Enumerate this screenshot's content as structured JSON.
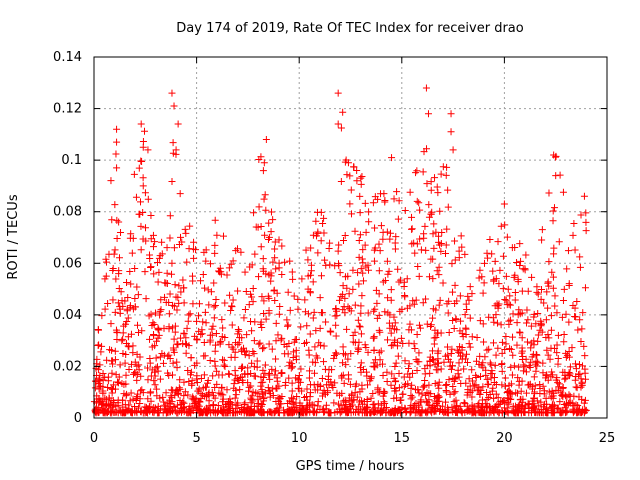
{
  "chart_data": {
    "type": "scatter",
    "title": "Day 174 of 2019, Rate Of TEC Index for receiver drao",
    "xlabel": "GPS time / hours",
    "ylabel": "ROTI / TECUs",
    "xlim": [
      0,
      25
    ],
    "ylim": [
      0,
      0.14
    ],
    "xticks": [
      0,
      5,
      10,
      15,
      20,
      25
    ],
    "yticks": [
      0,
      0.02,
      0.04,
      0.06,
      0.08,
      0.1,
      0.12,
      0.14
    ],
    "xtick_labels": [
      "0",
      "5",
      "10",
      "15",
      "20",
      "25"
    ],
    "ytick_labels": [
      "0",
      "0.02",
      "0.04",
      "0.06",
      "0.08",
      "0.1",
      "0.12",
      "0.14"
    ],
    "grid": true,
    "marker": "+",
    "color": "#ff0000",
    "x_range_of_points": [
      0,
      24
    ],
    "envelope": {
      "x": [
        0,
        0.5,
        1.0,
        1.5,
        2.0,
        2.5,
        3.0,
        3.5,
        4.0,
        4.5,
        5.0,
        5.5,
        6.0,
        6.5,
        7.0,
        7.5,
        8.0,
        8.5,
        9.0,
        9.5,
        10.0,
        10.5,
        11.0,
        11.5,
        12.0,
        12.5,
        13.0,
        13.5,
        14.0,
        14.5,
        15.0,
        15.5,
        16.0,
        16.5,
        17.0,
        17.5,
        18.0,
        18.5,
        19.0,
        19.5,
        20.0,
        20.5,
        21.0,
        21.5,
        22.0,
        22.5,
        23.0,
        23.5,
        24.0
      ],
      "y": [
        0.028,
        0.055,
        0.112,
        0.048,
        0.098,
        0.113,
        0.08,
        0.061,
        0.126,
        0.087,
        0.065,
        0.066,
        0.083,
        0.064,
        0.066,
        0.064,
        0.108,
        0.085,
        0.07,
        0.062,
        0.048,
        0.08,
        0.088,
        0.085,
        0.126,
        0.099,
        0.096,
        0.08,
        0.101,
        0.086,
        0.093,
        0.088,
        0.128,
        0.092,
        0.118,
        0.068,
        0.073,
        0.046,
        0.077,
        0.065,
        0.083,
        0.071,
        0.068,
        0.051,
        0.084,
        0.102,
        0.087,
        0.076,
        0.086
      ]
    },
    "notable_points": [
      {
        "x": 0.6,
        "y": 0.055
      },
      {
        "x": 1.1,
        "y": 0.112
      },
      {
        "x": 1.1,
        "y": 0.107
      },
      {
        "x": 1.1,
        "y": 0.097
      },
      {
        "x": 1.2,
        "y": 0.076
      },
      {
        "x": 1.2,
        "y": 0.056
      },
      {
        "x": 2.3,
        "y": 0.114
      },
      {
        "x": 2.4,
        "y": 0.105
      },
      {
        "x": 2.4,
        "y": 0.09
      },
      {
        "x": 3.8,
        "y": 0.126
      },
      {
        "x": 3.9,
        "y": 0.121
      },
      {
        "x": 4.1,
        "y": 0.114
      },
      {
        "x": 4.0,
        "y": 0.104
      },
      {
        "x": 4.2,
        "y": 0.087
      },
      {
        "x": 8.4,
        "y": 0.108
      },
      {
        "x": 8.3,
        "y": 0.099
      },
      {
        "x": 11.9,
        "y": 0.126
      },
      {
        "x": 11.9,
        "y": 0.114
      },
      {
        "x": 12.4,
        "y": 0.099
      },
      {
        "x": 12.8,
        "y": 0.096
      },
      {
        "x": 14.5,
        "y": 0.101
      },
      {
        "x": 16.2,
        "y": 0.128
      },
      {
        "x": 16.3,
        "y": 0.118
      },
      {
        "x": 17.4,
        "y": 0.118
      },
      {
        "x": 17.4,
        "y": 0.111
      },
      {
        "x": 17.5,
        "y": 0.104
      },
      {
        "x": 20.0,
        "y": 0.083
      },
      {
        "x": 22.4,
        "y": 0.102
      },
      {
        "x": 22.5,
        "y": 0.094
      },
      {
        "x": 23.9,
        "y": 0.086
      }
    ]
  }
}
